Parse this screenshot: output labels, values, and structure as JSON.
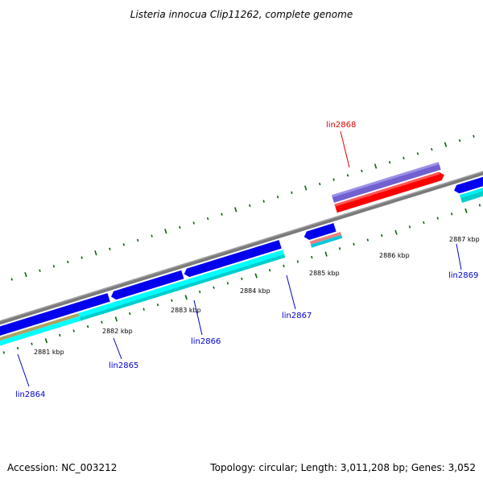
{
  "header": {
    "title": "Listeria innocua Clip11262, complete genome"
  },
  "footer": {
    "accession": "Accession: NC_003212",
    "topology": "Topology: circular; Length: 3,011,208 bp; Genes: 3,052"
  },
  "scale": {
    "labels": [
      "2881 kbp",
      "2882 kbp",
      "2883 kbp",
      "2884 kbp",
      "2885 kbp",
      "2886 kbp",
      "2887 kbp"
    ]
  },
  "genes": [
    {
      "name": "lin2864",
      "color": "#0000cc"
    },
    {
      "name": "lin2865",
      "color": "#0000cc"
    },
    {
      "name": "lin2866",
      "color": "#0000cc"
    },
    {
      "name": "lin2867",
      "color": "#0000cc"
    },
    {
      "name": "lin2868",
      "color": "#dd0000"
    },
    {
      "name": "lin2869",
      "color": "#0000cc"
    }
  ],
  "colors": {
    "backbone": "#808080",
    "tick": "#006600",
    "forward_cds": "#ff0000",
    "forward_feature": "#7060d0",
    "reverse_cds": "#0000ee",
    "reverse_feature": "#00d8d8",
    "rrna": "#e88080",
    "olive_feature": "#b0a060"
  }
}
